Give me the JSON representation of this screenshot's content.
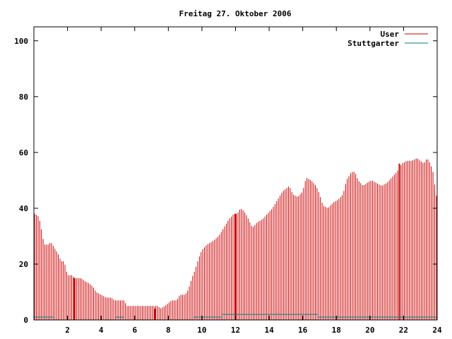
{
  "chart_data": {
    "type": "bar",
    "title": "Freitag 27. Oktober 2006",
    "xlabel": "",
    "ylabel": "",
    "xlim": [
      0,
      24
    ],
    "ylim": [
      0,
      105
    ],
    "x_ticks": [
      "2",
      "4",
      "6",
      "8",
      "10",
      "12",
      "14",
      "16",
      "18",
      "20",
      "22",
      "24"
    ],
    "y_ticks": [
      "0",
      "20",
      "40",
      "60",
      "80",
      "100"
    ],
    "grid": false,
    "legend_position": "top-right",
    "series": [
      {
        "name": "User",
        "color": "#cc0000",
        "knots": [
          [
            0.05,
            38
          ],
          [
            0.3,
            37
          ],
          [
            0.4,
            34
          ],
          [
            0.5,
            31
          ],
          [
            0.6,
            27
          ],
          [
            0.9,
            27
          ],
          [
            1.0,
            28
          ],
          [
            1.1,
            27
          ],
          [
            1.3,
            25
          ],
          [
            1.5,
            23
          ],
          [
            1.6,
            21
          ],
          [
            1.8,
            21
          ],
          [
            2.0,
            16
          ],
          [
            2.3,
            16
          ],
          [
            2.4,
            15
          ],
          [
            2.8,
            15
          ],
          [
            3.0,
            14
          ],
          [
            3.3,
            13
          ],
          [
            3.5,
            12
          ],
          [
            3.7,
            10
          ],
          [
            4.0,
            9
          ],
          [
            4.3,
            8
          ],
          [
            4.6,
            8
          ],
          [
            4.8,
            7
          ],
          [
            5.4,
            7
          ],
          [
            5.5,
            5
          ],
          [
            7.4,
            5
          ],
          [
            7.5,
            4
          ],
          [
            7.8,
            5
          ],
          [
            8.0,
            6
          ],
          [
            8.2,
            7
          ],
          [
            8.5,
            7
          ],
          [
            8.7,
            9
          ],
          [
            9.0,
            9
          ],
          [
            9.2,
            11
          ],
          [
            9.4,
            15
          ],
          [
            9.6,
            18
          ],
          [
            9.8,
            22
          ],
          [
            10.0,
            25
          ],
          [
            10.3,
            27
          ],
          [
            10.6,
            28
          ],
          [
            11.0,
            30
          ],
          [
            11.3,
            33
          ],
          [
            11.6,
            36
          ],
          [
            11.9,
            38
          ],
          [
            12.1,
            38
          ],
          [
            12.3,
            40
          ],
          [
            12.5,
            39
          ],
          [
            12.7,
            37
          ],
          [
            13.0,
            33
          ],
          [
            13.3,
            35
          ],
          [
            13.6,
            36
          ],
          [
            13.9,
            38
          ],
          [
            14.2,
            40
          ],
          [
            14.5,
            43
          ],
          [
            14.8,
            46
          ],
          [
            15.0,
            47
          ],
          [
            15.2,
            48
          ],
          [
            15.4,
            45
          ],
          [
            15.7,
            44
          ],
          [
            16.0,
            46
          ],
          [
            16.2,
            51
          ],
          [
            16.5,
            50
          ],
          [
            16.8,
            48
          ],
          [
            17.0,
            45
          ],
          [
            17.2,
            41
          ],
          [
            17.5,
            40
          ],
          [
            17.8,
            42
          ],
          [
            18.1,
            43
          ],
          [
            18.4,
            45
          ],
          [
            18.6,
            50
          ],
          [
            18.9,
            53
          ],
          [
            19.1,
            53
          ],
          [
            19.3,
            50
          ],
          [
            19.6,
            48
          ],
          [
            19.8,
            49
          ],
          [
            20.1,
            50
          ],
          [
            20.4,
            49
          ],
          [
            20.7,
            48
          ],
          [
            21.0,
            49
          ],
          [
            21.3,
            51
          ],
          [
            21.6,
            53
          ],
          [
            21.9,
            56
          ],
          [
            22.2,
            57
          ],
          [
            22.5,
            57
          ],
          [
            22.8,
            58
          ],
          [
            23.0,
            57
          ],
          [
            23.2,
            56
          ],
          [
            23.4,
            58
          ],
          [
            23.6,
            56
          ],
          [
            23.8,
            52
          ],
          [
            23.9,
            45
          ],
          [
            24.0,
            44
          ]
        ],
        "spikes": [
          [
            2.4,
            15
          ],
          [
            7.2,
            4
          ],
          [
            12.0,
            38
          ],
          [
            21.75,
            56
          ]
        ]
      },
      {
        "name": "Stuttgarter",
        "color": "#008080",
        "segments": [
          [
            0.0,
            1.2,
            1
          ],
          [
            4.85,
            5.35,
            1
          ],
          [
            9.5,
            11.2,
            1
          ],
          [
            11.2,
            16.9,
            2
          ],
          [
            16.9,
            24.0,
            1
          ]
        ]
      }
    ]
  }
}
